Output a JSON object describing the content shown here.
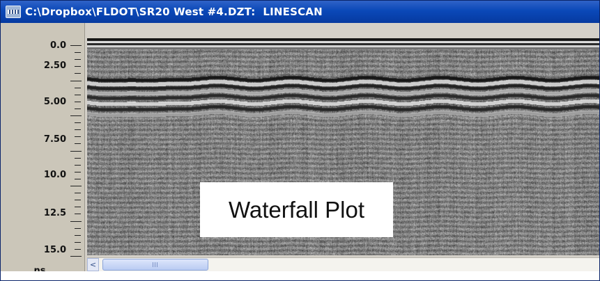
{
  "window": {
    "title": "C:\\Dropbox\\FLDOT\\SR20 West #4.DZT:  LINESCAN"
  },
  "ruler": {
    "labels": [
      "0.0",
      "2.50",
      "5.00",
      "7.50",
      "10.0",
      "12.5",
      "15.0"
    ],
    "unit": "ns"
  },
  "plot": {
    "overlay_label": "Waterfall Plot"
  },
  "scrollbar": {
    "left_arrow": "<"
  },
  "colors": {
    "title_bar": "#0a48b8",
    "ruler_bg": "#cbc6b9",
    "label_bg": "#ffffff"
  }
}
